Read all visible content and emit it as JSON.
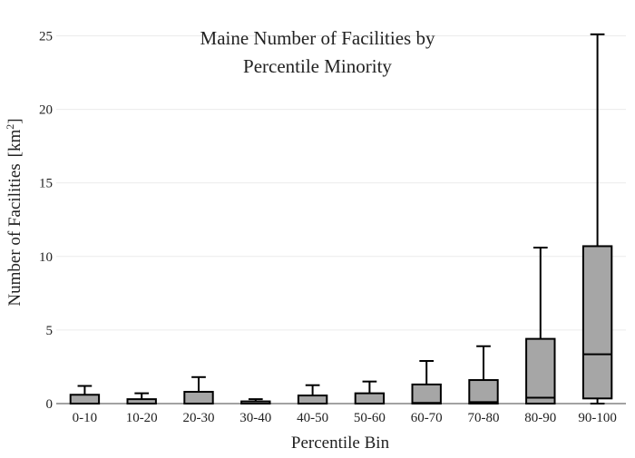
{
  "chart_data": {
    "type": "box",
    "title_lines": [
      "Maine Number of Facilities by",
      "Percentile Minority"
    ],
    "xlabel": "Percentile Bin",
    "ylabel": "Number of Facilities",
    "ylabel_unit": "[km",
    "ylabel_unit_sup": "2",
    "ylabel_unit_close": "]",
    "ylim": [
      0,
      26.2
    ],
    "yticks": [
      0,
      5,
      10,
      15,
      20,
      25
    ],
    "grid": true,
    "categories": [
      "0-10",
      "10-20",
      "20-30",
      "30-40",
      "40-50",
      "50-60",
      "60-70",
      "70-80",
      "80-90",
      "90-100"
    ],
    "boxes": [
      {
        "min": 0,
        "q1": 0,
        "median": 0,
        "q3": 0.6,
        "max": 1.2
      },
      {
        "min": 0,
        "q1": 0,
        "median": 0,
        "q3": 0.3,
        "max": 0.7
      },
      {
        "min": 0,
        "q1": 0,
        "median": 0,
        "q3": 0.8,
        "max": 1.8
      },
      {
        "min": 0,
        "q1": 0,
        "median": 0,
        "q3": 0.15,
        "max": 0.3
      },
      {
        "min": 0,
        "q1": 0,
        "median": 0,
        "q3": 0.55,
        "max": 1.25
      },
      {
        "min": 0,
        "q1": 0,
        "median": 0,
        "q3": 0.7,
        "max": 1.5
      },
      {
        "min": 0,
        "q1": 0,
        "median": 0.05,
        "q3": 1.3,
        "max": 2.9
      },
      {
        "min": 0,
        "q1": 0,
        "median": 0.1,
        "q3": 1.6,
        "max": 3.9
      },
      {
        "min": 0,
        "q1": 0,
        "median": 0.4,
        "q3": 4.4,
        "max": 10.6
      },
      {
        "min": 0,
        "q1": 0.35,
        "median": 3.35,
        "q3": 10.7,
        "max": 25.1
      }
    ],
    "colors": {
      "box_fill": "#a6a6a6",
      "box_stroke": "#000000",
      "grid": "#ececec",
      "axis": "#444444"
    }
  }
}
